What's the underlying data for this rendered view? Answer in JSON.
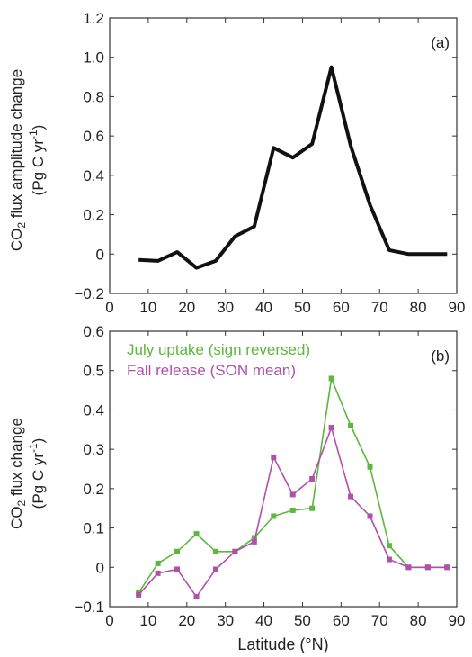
{
  "chart_data": [
    {
      "type": "line",
      "panel_label": "(a)",
      "ylabel": {
        "main": "CO",
        "sub": "2",
        "rest": " flux amplitude change",
        "unit_pre": "(Pg C yr",
        "unit_sup": "-1",
        "unit_post": ")"
      },
      "xlim": [
        0,
        90
      ],
      "ylim": [
        -0.2,
        1.2
      ],
      "x_ticks": [
        0,
        10,
        20,
        30,
        40,
        50,
        60,
        70,
        80,
        90
      ],
      "y_ticks": [
        -0.2,
        0,
        0.2,
        0.4,
        0.6,
        0.8,
        1.0,
        1.2
      ],
      "y_tick_labels": [
        "−0.2",
        "0",
        "0.2",
        "0.4",
        "0.6",
        "0.8",
        "1.0",
        "1.2"
      ],
      "series": [
        {
          "color": "#111111",
          "markers": false,
          "x": [
            7.5,
            12.5,
            17.5,
            22.5,
            27.5,
            32.5,
            37.5,
            42.5,
            47.5,
            52.5,
            57.5,
            62.5,
            67.5,
            72.5,
            77.5,
            82.5,
            87.5
          ],
          "values": [
            -0.03,
            -0.035,
            0.01,
            -0.07,
            -0.035,
            0.09,
            0.14,
            0.54,
            0.49,
            0.56,
            0.95,
            0.55,
            0.25,
            0.02,
            0.0,
            0.0,
            0.0
          ]
        }
      ]
    },
    {
      "type": "line",
      "panel_label": "(b)",
      "ylabel": {
        "main": "CO",
        "sub": "2",
        "rest": " flux  change",
        "unit_pre": "(Pg C yr",
        "unit_sup": "-1",
        "unit_post": ")"
      },
      "xlabel": "Latitude (°N)",
      "xlim": [
        0,
        90
      ],
      "ylim": [
        -0.1,
        0.6
      ],
      "x_ticks": [
        0,
        10,
        20,
        30,
        40,
        50,
        60,
        70,
        80,
        90
      ],
      "y_ticks": [
        -0.1,
        0,
        0.1,
        0.2,
        0.3,
        0.4,
        0.5,
        0.6
      ],
      "y_tick_labels": [
        "−0.1",
        "0",
        "0.1",
        "0.2",
        "0.3",
        "0.4",
        "0.5",
        "0.6"
      ],
      "legend": "top-left",
      "series": [
        {
          "name": "July uptake (sign reversed)",
          "color": "#5cb83c",
          "markers": true,
          "x": [
            7.5,
            12.5,
            17.5,
            22.5,
            27.5,
            32.5,
            37.5,
            42.5,
            47.5,
            52.5,
            57.5,
            62.5,
            67.5,
            72.5,
            77.5,
            82.5,
            87.5
          ],
          "values": [
            -0.065,
            0.01,
            0.04,
            0.085,
            0.04,
            0.04,
            0.075,
            0.13,
            0.145,
            0.15,
            0.48,
            0.36,
            0.255,
            0.055,
            0.0,
            0.0,
            0.0
          ]
        },
        {
          "name": "Fall release (SON mean)",
          "color": "#b24faa",
          "markers": true,
          "x": [
            7.5,
            12.5,
            17.5,
            22.5,
            27.5,
            32.5,
            37.5,
            42.5,
            47.5,
            52.5,
            57.5,
            62.5,
            67.5,
            72.5,
            77.5,
            82.5,
            87.5
          ],
          "values": [
            -0.07,
            -0.015,
            -0.005,
            -0.075,
            -0.005,
            0.04,
            0.065,
            0.28,
            0.185,
            0.225,
            0.355,
            0.18,
            0.13,
            0.02,
            0.0,
            0.0,
            0.0
          ]
        }
      ]
    }
  ]
}
